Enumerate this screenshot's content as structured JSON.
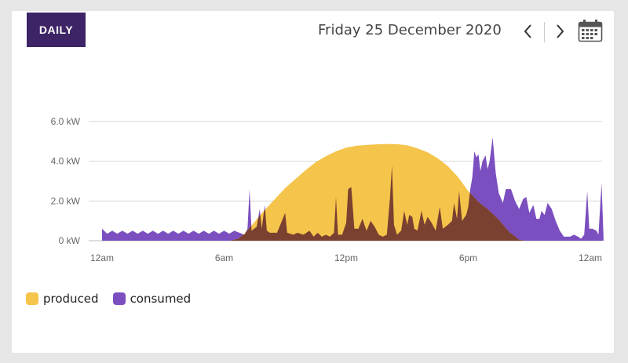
{
  "header": {
    "mode_label": "DAILY",
    "date": "Friday 25 December 2020",
    "prev_icon": "chevron-left-icon",
    "next_icon": "chevron-right-icon",
    "calendar_icon": "calendar-icon"
  },
  "colors": {
    "header_bg": "#3d2466",
    "produced": "#f5c44a",
    "consumed": "#7b4fbf",
    "overlap": "#7a4030",
    "grid": "#d6d6d6"
  },
  "chart_data": {
    "type": "area",
    "title": "",
    "xlabel": "",
    "ylabel": "",
    "x_unit": "hour",
    "xlim": [
      0,
      24
    ],
    "ylim": [
      0,
      6
    ],
    "y_ticks": [
      {
        "value": 0,
        "label": "0 kW"
      },
      {
        "value": 2,
        "label": "2.0 kW"
      },
      {
        "value": 4,
        "label": "4.0 kW"
      },
      {
        "value": 6,
        "label": "6.0 kW"
      }
    ],
    "x_ticks": [
      {
        "value": 0,
        "label": "12am"
      },
      {
        "value": 6,
        "label": "6am"
      },
      {
        "value": 12,
        "label": "12pm"
      },
      {
        "value": 18,
        "label": "6pm"
      },
      {
        "value": 24,
        "label": "12am"
      }
    ],
    "grid": true,
    "legend_position": "bottom-left",
    "series": [
      {
        "name": "produced",
        "points": [
          [
            0,
            0
          ],
          [
            6.3,
            0
          ],
          [
            6.7,
            0.1
          ],
          [
            7.0,
            0.35
          ],
          [
            7.3,
            0.7
          ],
          [
            7.7,
            1.2
          ],
          [
            8.0,
            1.55
          ],
          [
            8.5,
            2.1
          ],
          [
            9.0,
            2.65
          ],
          [
            9.5,
            3.1
          ],
          [
            10.0,
            3.55
          ],
          [
            10.5,
            3.95
          ],
          [
            11.0,
            4.25
          ],
          [
            11.5,
            4.5
          ],
          [
            12.0,
            4.68
          ],
          [
            12.5,
            4.78
          ],
          [
            13.0,
            4.82
          ],
          [
            13.5,
            4.85
          ],
          [
            14.0,
            4.87
          ],
          [
            14.5,
            4.86
          ],
          [
            15.0,
            4.8
          ],
          [
            15.5,
            4.65
          ],
          [
            16.0,
            4.45
          ],
          [
            16.5,
            4.15
          ],
          [
            17.0,
            3.75
          ],
          [
            17.5,
            3.2
          ],
          [
            18.0,
            2.5
          ],
          [
            18.5,
            1.95
          ],
          [
            19.0,
            1.55
          ],
          [
            19.5,
            1.05
          ],
          [
            20.0,
            0.45
          ],
          [
            20.5,
            0.05
          ],
          [
            20.8,
            0
          ],
          [
            24,
            0
          ]
        ]
      },
      {
        "name": "consumed",
        "points": [
          [
            0,
            0.6
          ],
          [
            0.25,
            0.35
          ],
          [
            0.5,
            0.5
          ],
          [
            0.75,
            0.35
          ],
          [
            1.0,
            0.5
          ],
          [
            1.25,
            0.35
          ],
          [
            1.5,
            0.5
          ],
          [
            1.75,
            0.35
          ],
          [
            2.0,
            0.5
          ],
          [
            2.25,
            0.35
          ],
          [
            2.5,
            0.5
          ],
          [
            2.75,
            0.35
          ],
          [
            3.0,
            0.5
          ],
          [
            3.25,
            0.35
          ],
          [
            3.5,
            0.5
          ],
          [
            3.75,
            0.35
          ],
          [
            4.0,
            0.5
          ],
          [
            4.25,
            0.35
          ],
          [
            4.5,
            0.5
          ],
          [
            4.75,
            0.35
          ],
          [
            5.0,
            0.5
          ],
          [
            5.25,
            0.35
          ],
          [
            5.5,
            0.5
          ],
          [
            5.75,
            0.35
          ],
          [
            6.0,
            0.5
          ],
          [
            6.25,
            0.35
          ],
          [
            6.5,
            0.5
          ],
          [
            6.75,
            0.4
          ],
          [
            7.0,
            0.3
          ],
          [
            7.15,
            0.6
          ],
          [
            7.25,
            2.6
          ],
          [
            7.35,
            0.5
          ],
          [
            7.6,
            0.7
          ],
          [
            7.75,
            1.6
          ],
          [
            7.85,
            0.6
          ],
          [
            8.0,
            1.8
          ],
          [
            8.1,
            0.5
          ],
          [
            8.25,
            0.4
          ],
          [
            8.6,
            0.4
          ],
          [
            8.8,
            0.9
          ],
          [
            9.0,
            1.4
          ],
          [
            9.1,
            0.4
          ],
          [
            9.4,
            0.3
          ],
          [
            9.6,
            0.4
          ],
          [
            9.9,
            0.3
          ],
          [
            10.2,
            0.5
          ],
          [
            10.4,
            0.2
          ],
          [
            10.6,
            0.4
          ],
          [
            10.8,
            0.2
          ],
          [
            11.0,
            0.3
          ],
          [
            11.2,
            0.2
          ],
          [
            11.4,
            0.4
          ],
          [
            11.5,
            2.2
          ],
          [
            11.6,
            0.3
          ],
          [
            11.8,
            0.3
          ],
          [
            12.0,
            0.9
          ],
          [
            12.1,
            2.6
          ],
          [
            12.25,
            2.7
          ],
          [
            12.4,
            0.6
          ],
          [
            12.6,
            0.6
          ],
          [
            12.8,
            1.1
          ],
          [
            13.0,
            0.5
          ],
          [
            13.2,
            1.0
          ],
          [
            13.4,
            0.7
          ],
          [
            13.6,
            0.3
          ],
          [
            13.8,
            0.2
          ],
          [
            14.0,
            0.3
          ],
          [
            14.15,
            2.1
          ],
          [
            14.25,
            3.8
          ],
          [
            14.35,
            0.8
          ],
          [
            14.5,
            0.3
          ],
          [
            14.7,
            0.5
          ],
          [
            14.85,
            1.5
          ],
          [
            15.0,
            0.8
          ],
          [
            15.1,
            1.3
          ],
          [
            15.25,
            1.2
          ],
          [
            15.35,
            0.6
          ],
          [
            15.5,
            0.5
          ],
          [
            15.7,
            1.5
          ],
          [
            15.85,
            0.8
          ],
          [
            16.0,
            1.2
          ],
          [
            16.2,
            0.9
          ],
          [
            16.4,
            0.5
          ],
          [
            16.6,
            1.7
          ],
          [
            16.75,
            0.6
          ],
          [
            17.0,
            0.8
          ],
          [
            17.2,
            1.0
          ],
          [
            17.3,
            1.9
          ],
          [
            17.45,
            1.1
          ],
          [
            17.55,
            2.5
          ],
          [
            17.7,
            1.0
          ],
          [
            17.9,
            1.3
          ],
          [
            18.0,
            1.7
          ],
          [
            18.1,
            2.6
          ],
          [
            18.2,
            3.2
          ],
          [
            18.3,
            4.5
          ],
          [
            18.4,
            4.2
          ],
          [
            18.5,
            4.35
          ],
          [
            18.6,
            3.5
          ],
          [
            18.7,
            4.0
          ],
          [
            18.85,
            4.3
          ],
          [
            18.95,
            3.6
          ],
          [
            19.05,
            4.0
          ],
          [
            19.2,
            5.2
          ],
          [
            19.35,
            3.4
          ],
          [
            19.5,
            2.4
          ],
          [
            19.7,
            1.9
          ],
          [
            19.85,
            2.6
          ],
          [
            20.1,
            2.6
          ],
          [
            20.3,
            2.0
          ],
          [
            20.5,
            1.6
          ],
          [
            20.7,
            2.1
          ],
          [
            20.85,
            2.2
          ],
          [
            21.0,
            1.4
          ],
          [
            21.2,
            1.8
          ],
          [
            21.35,
            1.1
          ],
          [
            21.5,
            1.1
          ],
          [
            21.6,
            1.5
          ],
          [
            21.75,
            1.3
          ],
          [
            21.9,
            1.9
          ],
          [
            22.1,
            1.6
          ],
          [
            22.3,
            1.0
          ],
          [
            22.5,
            0.5
          ],
          [
            22.7,
            0.2
          ],
          [
            23.0,
            0.2
          ],
          [
            23.2,
            0.3
          ],
          [
            23.4,
            0.2
          ],
          [
            23.55,
            0.1
          ],
          [
            23.7,
            0.3
          ],
          [
            23.85,
            2.5
          ],
          [
            23.95,
            0.6
          ],
          [
            24.1,
            0.6
          ],
          [
            24.3,
            0.5
          ],
          [
            24.4,
            0.3
          ],
          [
            24.55,
            2.9
          ],
          [
            24.65,
            0.2
          ]
        ]
      }
    ]
  },
  "legend": {
    "produced_label": "produced",
    "consumed_label": "consumed"
  }
}
